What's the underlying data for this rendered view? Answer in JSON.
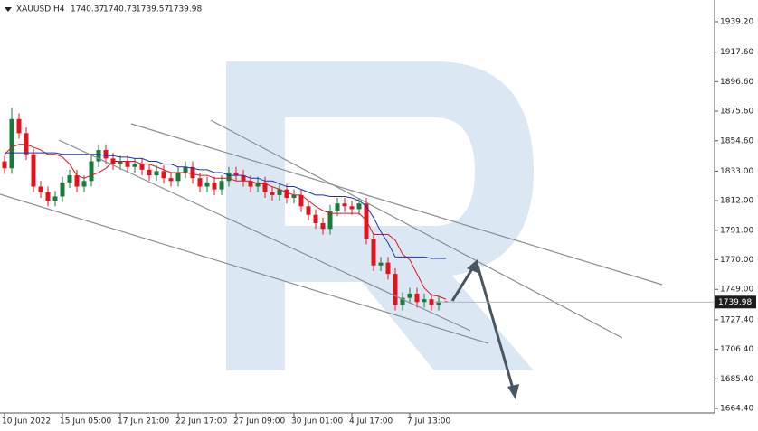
{
  "chart_data": {
    "type": "candlestick",
    "header": {
      "symbol": "XAUUSD,H4",
      "open": 1740.37,
      "high": 1740.73,
      "low": 1739.57,
      "close": 1739.98
    },
    "categories": [
      "10 Jun 2022",
      null,
      null,
      null,
      null,
      null,
      null,
      null,
      "15 Jun 05:00",
      null,
      null,
      null,
      null,
      null,
      null,
      null,
      "17 Jun 21:00",
      null,
      null,
      null,
      null,
      null,
      null,
      null,
      "22 Jun 17:00",
      null,
      null,
      null,
      null,
      null,
      null,
      null,
      "27 Jun 09:00",
      null,
      null,
      null,
      null,
      null,
      null,
      null,
      "30 Jun 01:00",
      null,
      null,
      null,
      null,
      null,
      null,
      null,
      "4 Jul 17:00",
      null,
      null,
      null,
      null,
      null,
      null,
      null,
      "7 Jul 13:00",
      null,
      null,
      null,
      null,
      null
    ],
    "open": [
      1840,
      1835,
      1870,
      1860,
      1845,
      1822,
      1818,
      1812,
      1815,
      1825,
      1830,
      1822,
      1826,
      1840,
      1848,
      1842,
      1838,
      1840,
      1836,
      1838,
      1834,
      1830,
      1833,
      1828,
      1826,
      1832,
      1836,
      1828,
      1822,
      1825,
      1820,
      1826,
      1832,
      1830,
      1826,
      1822,
      1825,
      1818,
      1816,
      1820,
      1814,
      1816,
      1808,
      1802,
      1796,
      1792,
      1805,
      1810,
      1808,
      1806,
      1810,
      1785,
      1766,
      1768,
      1760,
      1738,
      1743,
      1746,
      1740,
      1742,
      1738,
      1740.37
    ],
    "high": [
      1844,
      1878,
      1874,
      1864,
      1849,
      1826,
      1822,
      1819,
      1829,
      1834,
      1834,
      1830,
      1844,
      1852,
      1852,
      1846,
      1844,
      1844,
      1842,
      1842,
      1838,
      1837,
      1837,
      1832,
      1836,
      1840,
      1840,
      1832,
      1829,
      1829,
      1830,
      1836,
      1836,
      1834,
      1830,
      1829,
      1829,
      1822,
      1824,
      1824,
      1820,
      1820,
      1812,
      1806,
      1800,
      1809,
      1814,
      1814,
      1812,
      1814,
      1814,
      1789,
      1772,
      1772,
      1764,
      1747,
      1750,
      1750,
      1746,
      1746,
      1744,
      1740.73
    ],
    "low": [
      1831,
      1831,
      1856,
      1841,
      1818,
      1814,
      1808,
      1808,
      1811,
      1821,
      1818,
      1818,
      1822,
      1836,
      1838,
      1834,
      1834,
      1832,
      1832,
      1830,
      1826,
      1826,
      1824,
      1822,
      1822,
      1828,
      1824,
      1818,
      1818,
      1816,
      1816,
      1822,
      1826,
      1822,
      1818,
      1818,
      1814,
      1812,
      1812,
      1810,
      1810,
      1804,
      1798,
      1792,
      1788,
      1788,
      1801,
      1804,
      1802,
      1802,
      1781,
      1762,
      1762,
      1756,
      1734,
      1734,
      1739,
      1736,
      1736,
      1734,
      1734,
      1739.57
    ],
    "close": [
      1835,
      1870,
      1860,
      1845,
      1822,
      1818,
      1812,
      1815,
      1825,
      1830,
      1822,
      1826,
      1840,
      1848,
      1842,
      1838,
      1840,
      1836,
      1838,
      1834,
      1830,
      1833,
      1828,
      1826,
      1832,
      1836,
      1828,
      1822,
      1825,
      1820,
      1826,
      1832,
      1830,
      1826,
      1822,
      1825,
      1818,
      1816,
      1820,
      1814,
      1816,
      1808,
      1802,
      1796,
      1792,
      1805,
      1810,
      1808,
      1806,
      1810,
      1785,
      1766,
      1768,
      1760,
      1738,
      1743,
      1746,
      1740,
      1742,
      1738,
      1740.37,
      1739.98
    ],
    "up_color": "#1a7a3a",
    "down_color": "#e0141e",
    "series": [
      {
        "color": "#e0141e",
        "values": [
          1845,
          1850,
          1852,
          1852,
          1850,
          1848,
          1845,
          1845,
          1843,
          1838,
          1830,
          1828,
          1830,
          1832,
          1835,
          1840,
          1840,
          1840,
          1840,
          1838,
          1838,
          1836,
          1834,
          1832,
          1832,
          1832,
          1831,
          1830,
          1830,
          1828,
          1828,
          1828,
          1826,
          1826,
          1826,
          1824,
          1824,
          1822,
          1820,
          1818,
          1816,
          1816,
          1812,
          1808,
          1805,
          1803,
          1803,
          1803,
          1803,
          1803,
          1798,
          1788,
          1788,
          1788,
          1784,
          1774,
          1770,
          1760,
          1750,
          1745,
          1744,
          1742
        ]
      },
      {
        "color": "#1c2fb8",
        "values": [
          1846,
          1846,
          1846,
          1846,
          1846,
          1846,
          1846,
          1846,
          1845,
          1845,
          1845,
          1845,
          1845,
          1845,
          1844,
          1844,
          1843,
          1843,
          1842,
          1842,
          1840,
          1840,
          1838,
          1838,
          1836,
          1836,
          1835,
          1834,
          1834,
          1832,
          1832,
          1830,
          1830,
          1830,
          1828,
          1828,
          1826,
          1826,
          1824,
          1822,
          1822,
          1820,
          1818,
          1816,
          1816,
          1815,
          1815,
          1815,
          1814,
          1812,
          1808,
          1800,
          1790,
          1782,
          1772,
          1772,
          1772,
          1772,
          1772,
          1771,
          1771,
          1771
        ]
      }
    ],
    "last_price": 1739.98,
    "ylim": [
      1661.2,
      1954.6
    ],
    "yticks": [
      {
        "value": 1939.2,
        "label": "1939.20"
      },
      {
        "value": 1917.6,
        "label": "1917.60"
      },
      {
        "value": 1896.6,
        "label": "1896.60"
      },
      {
        "value": 1875.6,
        "label": "1875.60"
      },
      {
        "value": 1854.6,
        "label": "1854.60"
      },
      {
        "value": 1833,
        "label": "1833.00"
      },
      {
        "value": 1812,
        "label": "1812.00"
      },
      {
        "value": 1791,
        "label": "1791.00"
      },
      {
        "value": 1770,
        "label": "1770.00"
      },
      {
        "value": 1749,
        "label": "1749.00"
      },
      {
        "value": 1727.4,
        "label": "1727.40"
      },
      {
        "value": 1706.4,
        "label": "1706.40"
      },
      {
        "value": 1685.4,
        "label": "1685.40"
      },
      {
        "value": 1664.4,
        "label": "1664.40"
      }
    ]
  }
}
